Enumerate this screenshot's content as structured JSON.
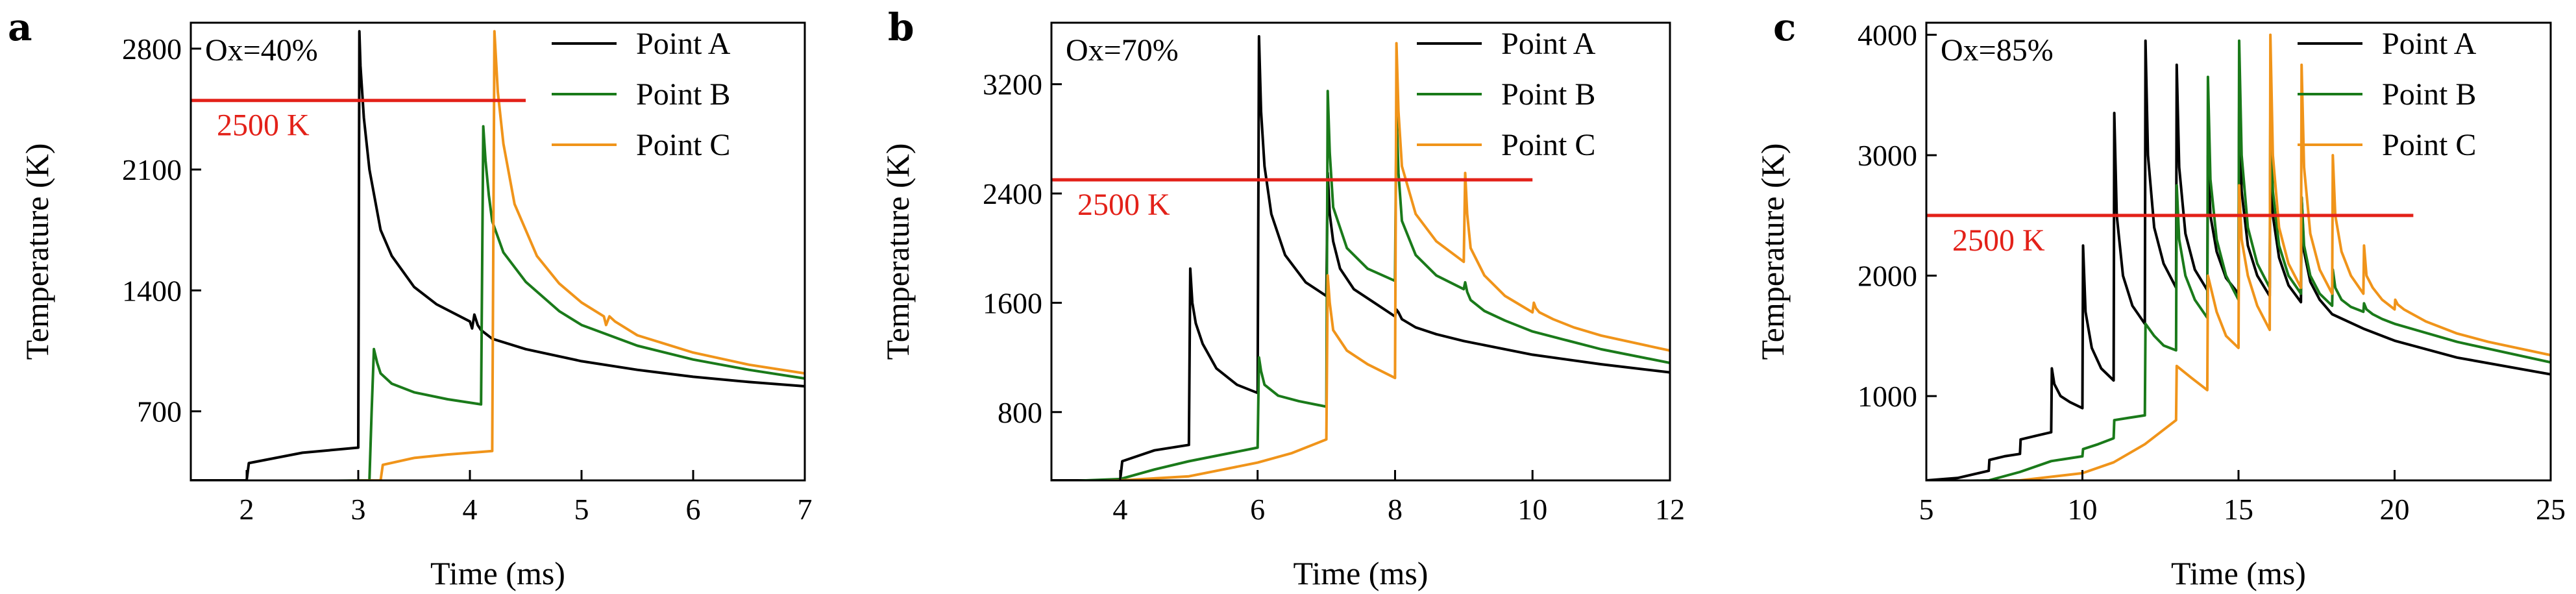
{
  "figure": {
    "panels": [
      "a",
      "b",
      "c"
    ]
  },
  "chart_data": [
    {
      "type": "line",
      "panel_label": "a",
      "annotation": "Ox=40%",
      "xlabel": "Time (ms)",
      "ylabel": "Temperature (K)",
      "xlim": [
        1.5,
        7
      ],
      "ylim": [
        300,
        2950
      ],
      "xticks": [
        2,
        3,
        4,
        5,
        6,
        7
      ],
      "yticks": [
        700,
        1400,
        2100,
        2800
      ],
      "grid": false,
      "legend_position": "top-right",
      "threshold": {
        "value": 2500,
        "label": "2500 K",
        "x_range": [
          1.5,
          4.5
        ],
        "color": "#e32119"
      },
      "series": [
        {
          "name": "Point A",
          "color": "#000000",
          "x": [
            1.5,
            2.0,
            2.02,
            2.5,
            3.0,
            3.01,
            3.02,
            3.05,
            3.1,
            3.2,
            3.3,
            3.5,
            3.7,
            4.0,
            4.02,
            4.04,
            4.07,
            4.1,
            4.2,
            4.5,
            5.0,
            5.5,
            6.0,
            6.5,
            7.0
          ],
          "y": [
            300,
            300,
            400,
            460,
            490,
            2900,
            2700,
            2400,
            2100,
            1750,
            1600,
            1420,
            1320,
            1220,
            1180,
            1260,
            1200,
            1170,
            1120,
            1060,
            990,
            940,
            900,
            870,
            845
          ]
        },
        {
          "name": "Point B",
          "color": "#1a7a1a",
          "x": [
            1.5,
            3.1,
            3.12,
            3.14,
            3.17,
            3.2,
            3.3,
            3.5,
            3.8,
            4.1,
            4.12,
            4.14,
            4.17,
            4.2,
            4.3,
            4.5,
            4.8,
            5.0,
            5.5,
            6.0,
            6.5,
            7.0
          ],
          "y": [
            290,
            300,
            700,
            1060,
            980,
            920,
            860,
            810,
            770,
            740,
            2350,
            2150,
            1950,
            1800,
            1620,
            1450,
            1280,
            1200,
            1080,
            1000,
            940,
            890
          ]
        },
        {
          "name": "Point C",
          "color": "#f0941a",
          "x": [
            1.5,
            3.2,
            3.22,
            3.5,
            3.8,
            4.2,
            4.22,
            4.25,
            4.3,
            4.4,
            4.6,
            4.8,
            5.0,
            5.2,
            5.22,
            5.25,
            5.3,
            5.5,
            6.0,
            6.5,
            7.0
          ],
          "y": [
            290,
            300,
            390,
            430,
            450,
            470,
            2900,
            2550,
            2250,
            1900,
            1600,
            1440,
            1330,
            1250,
            1200,
            1250,
            1220,
            1140,
            1040,
            970,
            920
          ]
        }
      ]
    },
    {
      "type": "line",
      "panel_label": "b",
      "annotation": "Ox=70%",
      "xlabel": "Time (ms)",
      "ylabel": "Temperature (K)",
      "xlim": [
        3,
        12
      ],
      "ylim": [
        300,
        3650
      ],
      "xticks": [
        4,
        6,
        8,
        10,
        12
      ],
      "yticks": [
        800,
        1600,
        2400,
        3200
      ],
      "grid": false,
      "legend_position": "top-right",
      "threshold": {
        "value": 2500,
        "label": "2500 K",
        "x_range": [
          3,
          10
        ],
        "color": "#e32119"
      },
      "series": [
        {
          "name": "Point A",
          "color": "#000000",
          "x": [
            3.0,
            4.0,
            4.03,
            4.5,
            5.0,
            5.02,
            5.05,
            5.1,
            5.2,
            5.4,
            5.7,
            6.0,
            6.02,
            6.05,
            6.1,
            6.2,
            6.4,
            6.7,
            7.0,
            7.02,
            7.05,
            7.1,
            7.2,
            7.4,
            7.7,
            8.0,
            8.02,
            8.05,
            8.1,
            8.3,
            8.6,
            9.0,
            10.0,
            11.0,
            12.0
          ],
          "y": [
            300,
            300,
            440,
            520,
            560,
            1850,
            1600,
            1450,
            1300,
            1120,
            1000,
            940,
            3550,
            3000,
            2600,
            2250,
            1950,
            1750,
            1650,
            2550,
            2250,
            2050,
            1850,
            1700,
            1600,
            1500,
            1550,
            1530,
            1480,
            1420,
            1370,
            1320,
            1220,
            1150,
            1090
          ]
        },
        {
          "name": "Point B",
          "color": "#1a7a1a",
          "x": [
            3.0,
            4.0,
            4.5,
            5.0,
            5.5,
            6.0,
            6.02,
            6.05,
            6.1,
            6.3,
            6.6,
            7.0,
            7.02,
            7.05,
            7.1,
            7.3,
            7.6,
            8.0,
            8.02,
            8.05,
            8.1,
            8.3,
            8.6,
            9.0,
            9.02,
            9.05,
            9.1,
            9.3,
            9.6,
            10.0,
            11.0,
            12.0
          ],
          "y": [
            290,
            310,
            380,
            440,
            490,
            540,
            1200,
            1100,
            1000,
            920,
            880,
            840,
            3150,
            2700,
            2300,
            2000,
            1850,
            1760,
            3000,
            2550,
            2200,
            1950,
            1800,
            1700,
            1750,
            1680,
            1620,
            1540,
            1470,
            1390,
            1260,
            1160
          ]
        },
        {
          "name": "Point C",
          "color": "#f0941a",
          "x": [
            3.0,
            4.0,
            5.0,
            5.5,
            6.0,
            6.5,
            7.0,
            7.02,
            7.05,
            7.1,
            7.3,
            7.6,
            8.0,
            8.02,
            8.05,
            8.1,
            8.3,
            8.6,
            9.0,
            9.02,
            9.05,
            9.1,
            9.3,
            9.6,
            10.0,
            10.02,
            10.05,
            10.1,
            10.3,
            10.6,
            11.0,
            12.0
          ],
          "y": [
            290,
            300,
            330,
            380,
            430,
            500,
            600,
            1800,
            1600,
            1400,
            1250,
            1150,
            1050,
            3500,
            3000,
            2600,
            2250,
            2050,
            1900,
            2550,
            2250,
            2000,
            1800,
            1650,
            1530,
            1600,
            1560,
            1530,
            1480,
            1420,
            1360,
            1250
          ]
        }
      ]
    },
    {
      "type": "line",
      "panel_label": "c",
      "annotation": "Ox=85%",
      "xlabel": "Time (ms)",
      "ylabel": "Temperature (K)",
      "xlim": [
        5,
        25
      ],
      "ylim": [
        300,
        4100
      ],
      "xticks": [
        5,
        10,
        15,
        20,
        25
      ],
      "yticks": [
        1000,
        2000,
        3000,
        4000
      ],
      "grid": false,
      "legend_position": "top-right",
      "threshold": {
        "value": 2500,
        "label": "2500 K",
        "x_range": [
          5,
          20.6
        ],
        "color": "#e32119"
      },
      "series": [
        {
          "name": "Point A",
          "color": "#000000",
          "x": [
            5.0,
            6.0,
            7.0,
            7.02,
            7.5,
            8.0,
            8.02,
            8.5,
            9.0,
            9.02,
            9.1,
            9.3,
            9.6,
            10.0,
            10.02,
            10.1,
            10.3,
            10.6,
            11.0,
            11.02,
            11.1,
            11.3,
            11.6,
            12.0,
            12.02,
            12.1,
            12.3,
            12.6,
            13.0,
            13.02,
            13.1,
            13.3,
            13.6,
            14.0,
            14.02,
            14.1,
            14.3,
            14.6,
            15.0,
            15.02,
            15.1,
            15.3,
            15.6,
            16.0,
            16.02,
            16.1,
            16.3,
            16.6,
            17.0,
            17.02,
            17.1,
            17.3,
            17.6,
            18.0,
            19.0,
            20.0,
            22.0,
            25.0
          ],
          "y": [
            300,
            320,
            380,
            470,
            500,
            520,
            640,
            670,
            700,
            1230,
            1100,
            1000,
            950,
            900,
            2250,
            1700,
            1400,
            1230,
            1130,
            3350,
            2500,
            2000,
            1750,
            1600,
            3950,
            3000,
            2400,
            2100,
            1900,
            3750,
            2900,
            2350,
            2050,
            1880,
            3000,
            2500,
            2200,
            1980,
            1850,
            3400,
            2700,
            2250,
            2000,
            1830,
            3050,
            2500,
            2150,
            1920,
            1780,
            2650,
            2200,
            1950,
            1800,
            1680,
            1560,
            1460,
            1320,
            1180
          ]
        },
        {
          "name": "Point B",
          "color": "#1a7a1a",
          "x": [
            5.0,
            7.0,
            8.0,
            9.0,
            10.0,
            10.02,
            10.5,
            11.0,
            11.02,
            11.5,
            12.0,
            12.02,
            12.3,
            12.6,
            13.0,
            13.02,
            13.1,
            13.3,
            13.6,
            14.0,
            14.02,
            14.1,
            14.3,
            14.6,
            15.0,
            15.02,
            15.1,
            15.3,
            15.6,
            16.0,
            16.02,
            16.1,
            16.3,
            16.6,
            17.0,
            17.02,
            17.1,
            17.3,
            17.6,
            18.0,
            18.02,
            18.1,
            18.3,
            18.6,
            19.0,
            19.02,
            19.1,
            19.3,
            19.6,
            20.0,
            22.0,
            25.0
          ],
          "y": [
            290,
            300,
            370,
            460,
            500,
            560,
            600,
            650,
            800,
            820,
            840,
            1600,
            1500,
            1420,
            1380,
            2750,
            2300,
            2000,
            1800,
            1650,
            3650,
            2800,
            2300,
            2000,
            1800,
            3950,
            3000,
            2400,
            2100,
            1900,
            3450,
            2700,
            2250,
            2000,
            1850,
            2650,
            2250,
            2000,
            1850,
            1750,
            2050,
            1900,
            1800,
            1740,
            1700,
            1770,
            1720,
            1680,
            1640,
            1600,
            1450,
            1280
          ]
        },
        {
          "name": "Point C",
          "color": "#f0941a",
          "x": [
            5.0,
            8.0,
            10.0,
            11.0,
            12.0,
            13.0,
            13.02,
            13.5,
            14.0,
            14.02,
            14.3,
            14.6,
            15.0,
            15.02,
            15.1,
            15.3,
            15.6,
            16.0,
            16.02,
            16.1,
            16.3,
            16.6,
            17.0,
            17.02,
            17.1,
            17.3,
            17.6,
            18.0,
            18.02,
            18.1,
            18.3,
            18.6,
            19.0,
            19.02,
            19.1,
            19.3,
            19.6,
            20.0,
            20.02,
            20.1,
            20.3,
            21.0,
            22.0,
            23.0,
            25.0
          ],
          "y": [
            290,
            300,
            360,
            450,
            600,
            800,
            1250,
            1150,
            1050,
            2000,
            1700,
            1500,
            1400,
            2750,
            2300,
            2000,
            1750,
            1550,
            4000,
            3000,
            2400,
            2100,
            1900,
            3750,
            2900,
            2350,
            2050,
            1850,
            3000,
            2500,
            2200,
            2000,
            1850,
            2250,
            2000,
            1900,
            1800,
            1720,
            1800,
            1760,
            1720,
            1620,
            1520,
            1450,
            1340
          ]
        }
      ]
    }
  ]
}
